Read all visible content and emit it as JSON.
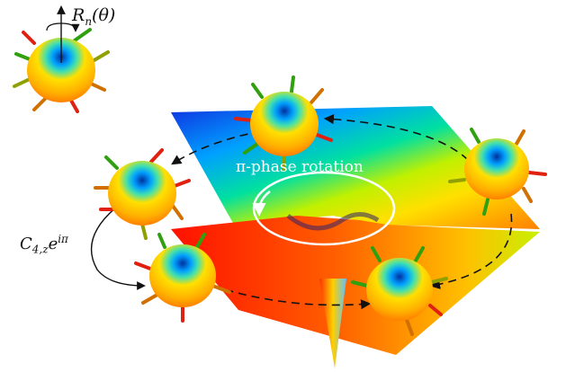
{
  "labels": {
    "rotation_op": {
      "base": "R",
      "sub": "n",
      "arg": "(θ)"
    },
    "c4_op": {
      "base": "C",
      "sub": "4,z",
      "exp": "e",
      "exp_sup": "iπ"
    },
    "pi_phase": "π-phase rotation"
  },
  "colors": {
    "plane_gradient": [
      "#1030e0",
      "#00a0ff",
      "#00e0a0",
      "#c0f000",
      "#ffe000",
      "#ff8000",
      "#ff1000"
    ],
    "sphere_core": "#ffd000",
    "sphere_cap": "#00c0ff",
    "arrow_colors": [
      "#e02010",
      "#30a010",
      "#d07000",
      "#90a000"
    ],
    "dashed_path": "#111111",
    "rotation_circle": "#ffffff"
  },
  "icons": {
    "rotation_arrow": "circular-arrow-icon",
    "dashed_cycle": "dashed-loop-arrow-icon"
  }
}
